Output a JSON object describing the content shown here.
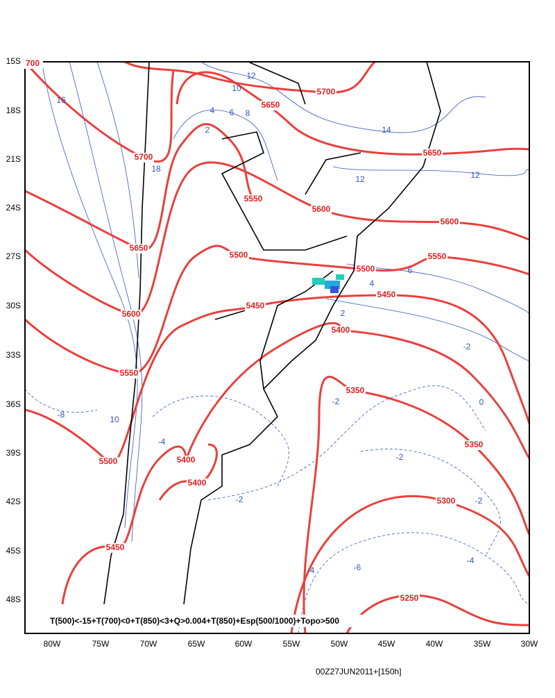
{
  "map": {
    "lat_labels": [
      "15S",
      "18S",
      "21S",
      "24S",
      "27S",
      "30S",
      "33S",
      "36S",
      "39S",
      "42S",
      "45S",
      "48S"
    ],
    "lon_labels": [
      "80W",
      "75W",
      "70W",
      "65W",
      "60W",
      "55W",
      "50W",
      "45W",
      "40W",
      "35W",
      "30W"
    ],
    "red_labels": [
      "700",
      "5700",
      "5650",
      "5700",
      "5650",
      "5550",
      "5600",
      "5600",
      "5650",
      "5500",
      "5550",
      "5500",
      "5450",
      "5450",
      "5600",
      "5400",
      "5550",
      "5350",
      "5350",
      "5500",
      "5400",
      "5400",
      "5300",
      "5450",
      "5250"
    ],
    "blue_labels": [
      "12",
      "10",
      "16",
      "14",
      "12",
      "12",
      "18",
      "6",
      "8",
      "4",
      "2",
      "-8",
      "10",
      "-2",
      "-2",
      "-2",
      "-4",
      "-6",
      "-4",
      "-2",
      "0",
      "-2",
      "6",
      "4",
      "2",
      "-4"
    ],
    "caption": "T(500)<-15+T(700)<0+T(850)<3+Q>0.004+T(850)+Esp(500/1000)+Topo>500",
    "timestamp": "00Z27JUN2011+[150h]"
  }
}
